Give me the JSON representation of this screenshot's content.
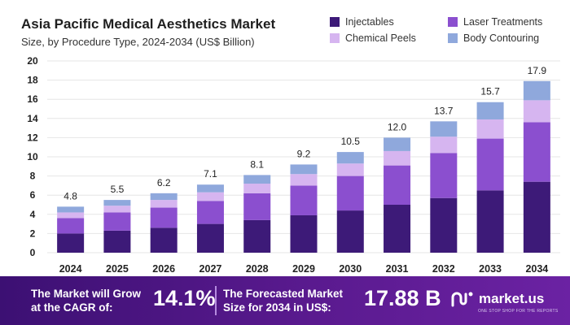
{
  "header": {
    "title": "Asia Pacific Medical Aesthetics Market",
    "subtitle": "Size, by Procedure Type, 2024-2034 (US$ Billion)"
  },
  "legend": [
    {
      "label": "Injectables",
      "color": "#3d1a78"
    },
    {
      "label": "Laser Treatments",
      "color": "#8b4fcf"
    },
    {
      "label": "Chemical Peels",
      "color": "#d6b5f0"
    },
    {
      "label": "Body Contouring",
      "color": "#8fa8dc"
    }
  ],
  "chart_data": {
    "type": "bar",
    "stacked": true,
    "title": "Asia Pacific Medical Aesthetics Market",
    "subtitle": "Size, by Procedure Type, 2024-2034 (US$ Billion)",
    "categories": [
      "2024",
      "2025",
      "2026",
      "2027",
      "2028",
      "2029",
      "2030",
      "2031",
      "2032",
      "2033",
      "2034"
    ],
    "series": [
      {
        "name": "Injectables",
        "color": "#3d1a78",
        "values": [
          2.0,
          2.3,
          2.6,
          3.0,
          3.4,
          3.9,
          4.4,
          5.0,
          5.7,
          6.5,
          7.4
        ]
      },
      {
        "name": "Laser Treatments",
        "color": "#8b4fcf",
        "values": [
          1.6,
          1.9,
          2.1,
          2.4,
          2.8,
          3.1,
          3.6,
          4.1,
          4.7,
          5.4,
          6.2
        ]
      },
      {
        "name": "Chemical Peels",
        "color": "#d6b5f0",
        "values": [
          0.6,
          0.7,
          0.8,
          0.9,
          1.0,
          1.2,
          1.3,
          1.5,
          1.7,
          2.0,
          2.3
        ]
      },
      {
        "name": "Body Contouring",
        "color": "#8fa8dc",
        "values": [
          0.6,
          0.6,
          0.7,
          0.8,
          0.9,
          1.0,
          1.2,
          1.4,
          1.6,
          1.8,
          2.0
        ]
      }
    ],
    "totals": [
      "4.8",
      "5.5",
      "6.2",
      "7.1",
      "8.1",
      "9.2",
      "10.5",
      "12.0",
      "13.7",
      "15.7",
      "17.9"
    ],
    "yticks": [
      0,
      2,
      4,
      6,
      8,
      10,
      12,
      14,
      16,
      18,
      20
    ],
    "ylim": [
      0,
      20
    ],
    "grid": true,
    "legend_position": "top-right"
  },
  "footer": {
    "cagr_label_1": "The Market will Grow",
    "cagr_label_2": "at the CAGR of:",
    "cagr_value": "14.1%",
    "forecast_label_1": "The Forecasted Market",
    "forecast_label_2": "Size for 2034 in US$:",
    "forecast_value": "17.88 B",
    "brand": "market.us",
    "brand_tagline": "ONE STOP SHOP FOR THE REPORTS",
    "bg_color": "#4a1581"
  }
}
